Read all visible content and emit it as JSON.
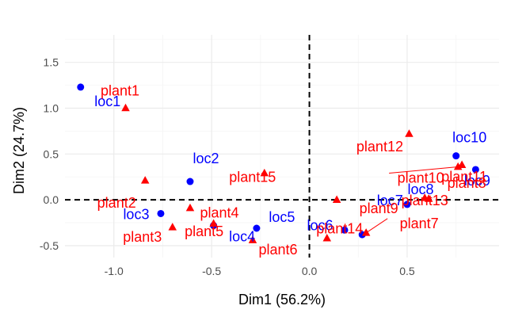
{
  "chart_data": {
    "type": "scatter",
    "title": "",
    "xlabel": "Dim1 (56.2%)",
    "ylabel": "Dim2 (24.7%)",
    "xlim": [
      -1.25,
      0.97
    ],
    "ylim": [
      -0.63,
      1.8
    ],
    "x_ticks": [
      -1.0,
      -0.5,
      0.0,
      0.5
    ],
    "x_tick_labels": [
      "-1.0",
      "-0.5",
      "0.0",
      "0.5"
    ],
    "y_ticks": [
      -0.5,
      0.0,
      0.5,
      1.0,
      1.5
    ],
    "y_tick_labels": [
      "-0.5",
      "0.0",
      "0.5",
      "1.0",
      "1.5"
    ],
    "grid": true,
    "reference_lines": {
      "x": 0,
      "y": 0,
      "style": "dashed"
    },
    "colors": {
      "loc": "#0000ff",
      "plant": "#ff0000",
      "grid_major": "#ebebeb",
      "grid_minor": "#f5f5f5"
    },
    "series": [
      {
        "marker": "circle",
        "color": "#0000ff",
        "points": [
          {
            "label": "loc1",
            "x": -1.17,
            "y": 1.23
          },
          {
            "label": "loc2",
            "x": -0.61,
            "y": 0.2
          },
          {
            "label": "loc3",
            "x": -0.76,
            "y": -0.15
          },
          {
            "label": "loc4",
            "x": -0.49,
            "y": -0.28
          },
          {
            "label": "loc5",
            "x": -0.27,
            "y": -0.31
          },
          {
            "label": "loc6",
            "x": 0.18,
            "y": -0.33
          },
          {
            "label": "loc7",
            "x": 0.27,
            "y": -0.38
          },
          {
            "label": "loc8",
            "x": 0.5,
            "y": -0.05
          },
          {
            "label": "loc9",
            "x": 0.85,
            "y": 0.33
          },
          {
            "label": "loc10",
            "x": 0.75,
            "y": 0.48
          }
        ]
      },
      {
        "marker": "triangle",
        "color": "#ff0000",
        "points": [
          {
            "label": "plant1",
            "x": -0.94,
            "y": 1.0
          },
          {
            "label": "plant2",
            "x": -0.84,
            "y": 0.21
          },
          {
            "label": "plant3",
            "x": -0.7,
            "y": -0.3
          },
          {
            "label": "plant4",
            "x": -0.61,
            "y": -0.09
          },
          {
            "label": "plant5",
            "x": -0.49,
            "y": -0.26
          },
          {
            "label": "plant6",
            "x": -0.29,
            "y": -0.44
          },
          {
            "label": "plant7",
            "x": 0.29,
            "y": -0.36
          },
          {
            "label": "plant8",
            "x": 0.61,
            "y": 0.01
          },
          {
            "label": "plant9",
            "x": 0.14,
            "y": 0.0
          },
          {
            "label": "plant10",
            "x": 0.76,
            "y": 0.36
          },
          {
            "label": "plant11",
            "x": 0.78,
            "y": 0.38
          },
          {
            "label": "plant12",
            "x": 0.51,
            "y": 0.72
          },
          {
            "label": "plant13",
            "x": 0.59,
            "y": 0.02
          },
          {
            "label": "plant14",
            "x": 0.09,
            "y": -0.42
          },
          {
            "label": "plant15",
            "x": -0.23,
            "y": 0.29
          }
        ]
      }
    ]
  }
}
